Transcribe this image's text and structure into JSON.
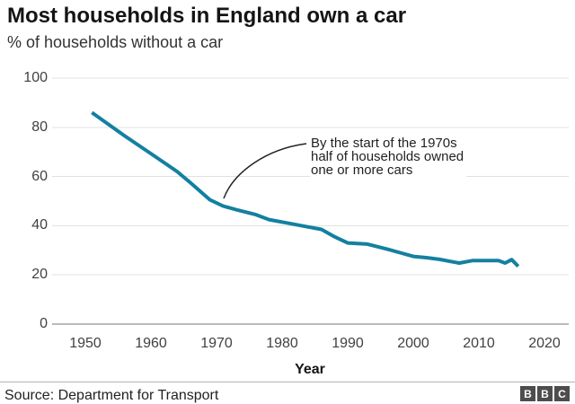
{
  "chart_data": {
    "type": "line",
    "title": "Most households in England own a car",
    "subtitle": "% of households without a car",
    "xlabel": "Year",
    "ylabel": "% of households without a car",
    "xlim": [
      1950,
      2020
    ],
    "ylim": [
      0,
      100
    ],
    "x_ticks": [
      1950,
      1960,
      1970,
      1980,
      1990,
      2000,
      2010,
      2020
    ],
    "y_ticks": [
      0,
      20,
      40,
      60,
      80,
      100
    ],
    "grid": "horizontal",
    "legend": "none",
    "line_color": "#1380A1",
    "series": [
      {
        "name": "% of households without a car",
        "points": [
          [
            1951,
            86
          ],
          [
            1956,
            76.5
          ],
          [
            1961,
            67.5
          ],
          [
            1964,
            62
          ],
          [
            1966,
            57.5
          ],
          [
            1969,
            50.5
          ],
          [
            1971,
            48
          ],
          [
            1973,
            46.5
          ],
          [
            1976,
            44.5
          ],
          [
            1978,
            42.5
          ],
          [
            1981,
            41
          ],
          [
            1984,
            39.5
          ],
          [
            1986,
            38.5
          ],
          [
            1988,
            35.5
          ],
          [
            1990,
            33
          ],
          [
            1993,
            32.5
          ],
          [
            1996,
            30.5
          ],
          [
            1998,
            29
          ],
          [
            2000,
            27.5
          ],
          [
            2002,
            27
          ],
          [
            2004,
            26.3
          ],
          [
            2007,
            24.8
          ],
          [
            2009,
            25.8
          ],
          [
            2013,
            25.8
          ],
          [
            2014,
            24.8
          ],
          [
            2015,
            26.2
          ],
          [
            2016,
            23.5
          ]
        ]
      }
    ],
    "annotation": {
      "lines": [
        "By the start of the 1970s",
        "half of households owned",
        "one or more cars"
      ],
      "arrow_points_to": {
        "year": 1971,
        "value": 48
      }
    }
  },
  "footer": {
    "source": "Source: Department for Transport",
    "logo_letters": [
      "B",
      "B",
      "C"
    ]
  },
  "colors": {
    "line": "#1380A1",
    "gridline": "#e1e1e1",
    "zero_axis": "#757575",
    "annotation_arrow": "#222222",
    "title_text": "#141414",
    "tick_text": "#414141"
  }
}
